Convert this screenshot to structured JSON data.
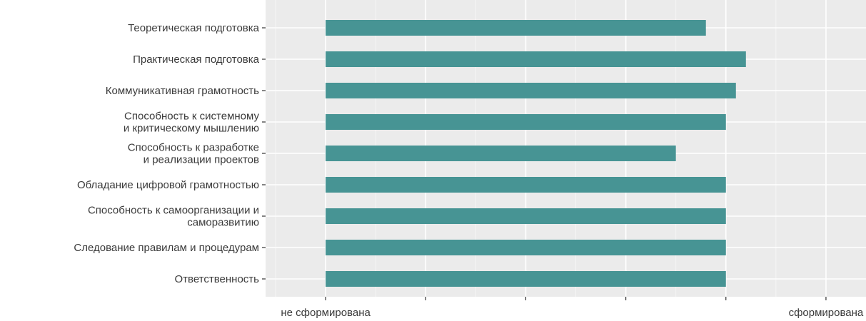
{
  "chart_data": {
    "type": "bar",
    "orientation": "horizontal",
    "categories": [
      [
        "Теоретическая подготовка"
      ],
      [
        "Практическая подготовка"
      ],
      [
        "Коммуникативная грамотность"
      ],
      [
        "Способность к системному",
        "и критическому мышлению"
      ],
      [
        "Способность к разработке",
        "и реализации проектов"
      ],
      [
        "Обладание цифровой грамотностью"
      ],
      [
        "Способность к самоорганизации и",
        "саморазвитию"
      ],
      [
        "Следование правилам и процедурам"
      ],
      [
        "Ответственность"
      ]
    ],
    "values": [
      3.8,
      4.2,
      4.1,
      4.0,
      3.5,
      4.0,
      4.0,
      4.0,
      4.0
    ],
    "xlim": [
      -0.6,
      5.4
    ],
    "x_ticks": [
      0,
      1,
      2,
      3,
      4,
      5
    ],
    "x_tick_labels": [
      "не сформирована",
      "",
      "",
      "",
      "",
      "сформирована"
    ],
    "bar_color": "#479494",
    "panel_background": "#ebebeb",
    "grid": true,
    "title": "",
    "xlabel": "",
    "ylabel": ""
  }
}
